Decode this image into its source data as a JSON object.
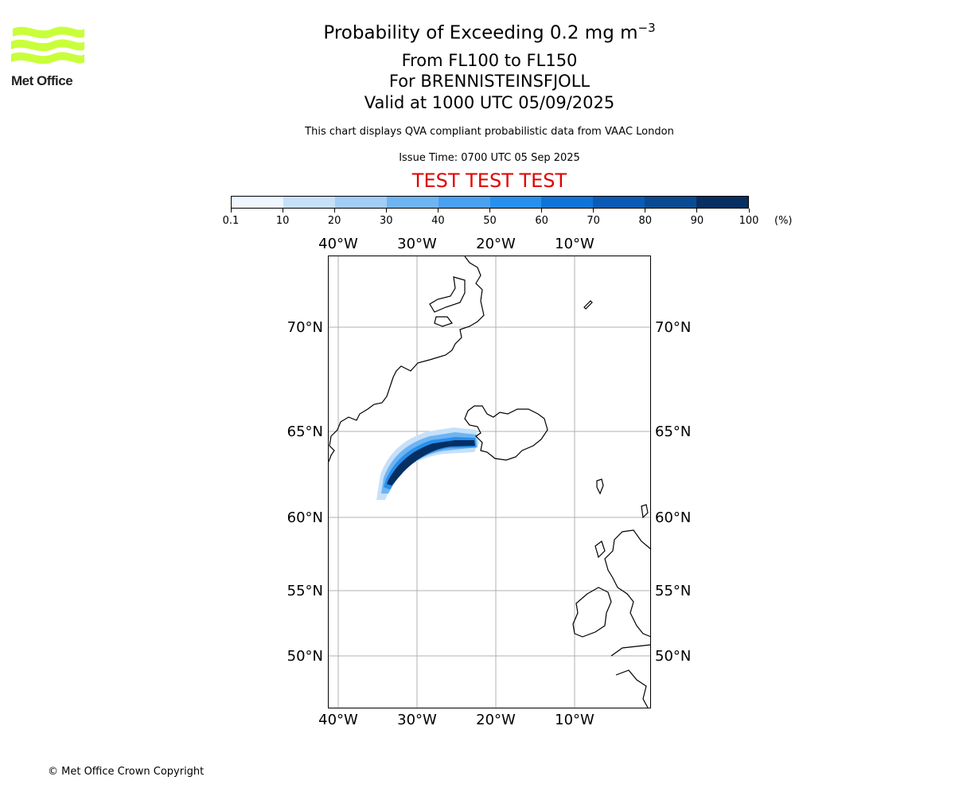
{
  "logo": {
    "name": "Met Office"
  },
  "title": {
    "main": "Probability of Exceeding 0.2 mg m",
    "main_exp": "−3",
    "levels": "From FL100 to FL150",
    "volcano": "For BRENNISTEINSFJOLL",
    "valid": "Valid at 1000 UTC 05/09/2025",
    "note": "This chart displays QVA compliant probabilistic data from VAAC London",
    "issue": "Issue Time: 0700 UTC 05 Sep 2025",
    "test": "TEST TEST TEST"
  },
  "colorbar": {
    "unit": "(%)",
    "ticks": [
      "0.1",
      "10",
      "20",
      "30",
      "40",
      "50",
      "60",
      "70",
      "80",
      "90",
      "100"
    ],
    "colors": [
      "#eef6ff",
      "#c6e0fa",
      "#a2cdf7",
      "#6fb4f2",
      "#49a1f0",
      "#2790ee",
      "#0f74d8",
      "#0a5bb5",
      "#084b92",
      "#062f62"
    ]
  },
  "map": {
    "lon_labels": [
      "40°W",
      "30°W",
      "20°W",
      "10°W"
    ],
    "lat_labels": [
      "70°N",
      "65°N",
      "60°N",
      "55°N",
      "50°N"
    ],
    "gridlines": true
  },
  "plume": {
    "description_free": true,
    "core_color": "#062f62"
  },
  "footer": {
    "copyright": "© Met Office Crown Copyright"
  }
}
